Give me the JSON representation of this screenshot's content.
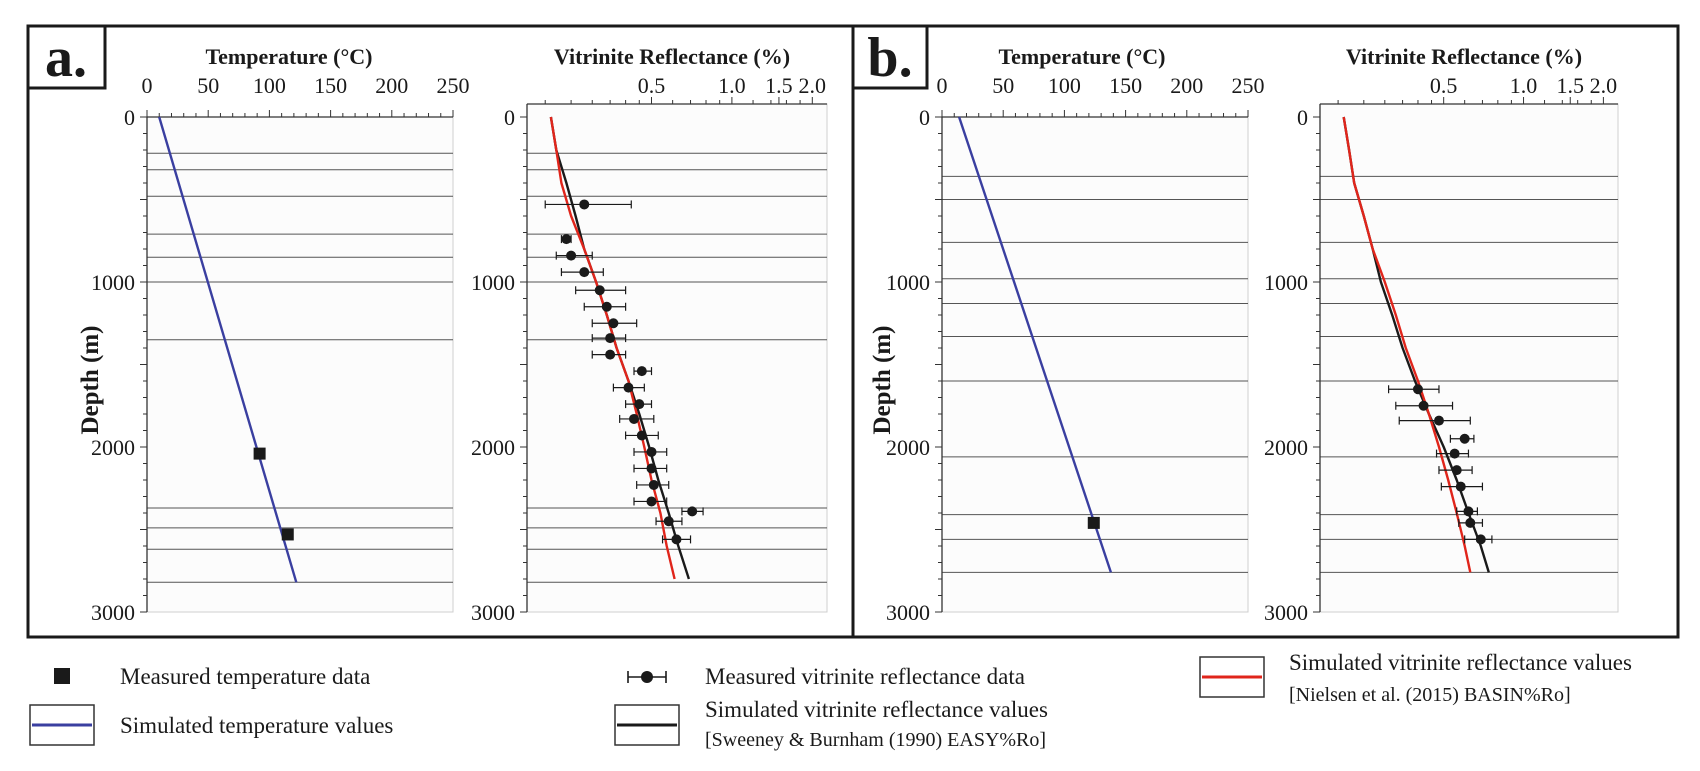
{
  "colors": {
    "temperature_line": "#3a3fa0",
    "easy_ro_line": "#1a1a1a",
    "basin_ro_line": "#e0251b",
    "marker": "#1a1a1a",
    "frame": "#1a1a1a",
    "gridline": "#555555"
  },
  "shared": {
    "ylabel": "Depth (m)",
    "y_ticks": [
      "0",
      "1000",
      "2000",
      "3000"
    ],
    "temp_title": "Temperature (°C)",
    "temp_ticks": [
      "0",
      "50",
      "100",
      "150",
      "200",
      "250"
    ],
    "vr_title": "Vitrinite Reflectance (%)",
    "vr_ticks": [
      "0.5",
      "1.0",
      "1.5",
      "2.0"
    ]
  },
  "legend": {
    "measured_temp": "Measured temperature data",
    "simulated_temp": "Simulated temperature values",
    "measured_vr": "Measured vitrinite reflectance data",
    "simulated_vr_easy": "Simulated vitrinite reflectance values",
    "simulated_vr_easy_ref": "[Sweeney & Burnham (1990) EASY%Ro]",
    "simulated_vr_basin": "Simulated vitrinite reflectance values",
    "simulated_vr_basin_ref": "[Nielsen et al. (2015) BASIN%Ro]"
  },
  "chart_data": [
    {
      "panel_label": "a.",
      "type": "line",
      "title": "Temperature (°C)",
      "xlabel": "Temperature (°C)",
      "ylabel": "Depth (m)",
      "xlim": [
        0,
        250
      ],
      "ylim": [
        3000,
        0
      ],
      "x_ticks": [
        0,
        50,
        100,
        150,
        200,
        250
      ],
      "y_ticks": [
        0,
        1000,
        2000,
        3000
      ],
      "grid": "horizontal formation boundaries",
      "horizon_depths": [
        220,
        320,
        480,
        710,
        850,
        1000,
        1350,
        2370,
        2490,
        2620,
        2820
      ],
      "series": [
        {
          "name": "Simulated temperature values",
          "kind": "line",
          "depth": [
            0,
            2820
          ],
          "values": [
            10,
            122
          ]
        },
        {
          "name": "Measured temperature data",
          "kind": "points",
          "depth": [
            2040,
            2530
          ],
          "values": [
            92,
            115
          ]
        }
      ]
    },
    {
      "panel_label": "a.",
      "type": "line",
      "title": "Vitrinite Reflectance (%)",
      "xlabel": "Vitrinite Reflectance (%)",
      "ylabel": "Depth (m)",
      "xscale": "log",
      "xlim": [
        0.2,
        2.0
      ],
      "ylim": [
        3000,
        0
      ],
      "x_ticks": [
        0.5,
        1.0,
        1.5,
        2.0
      ],
      "y_ticks": [
        0,
        1000,
        2000,
        3000
      ],
      "horizon_depths": [
        220,
        320,
        480,
        710,
        850,
        1000,
        1350,
        2370,
        2490,
        2620,
        2820
      ],
      "series": [
        {
          "name": "Simulated vitrinite reflectance values [Sweeney & Burnham (1990) EASY%Ro]",
          "kind": "line",
          "depth": [
            0,
            200,
            400,
            600,
            800,
            1000,
            1200,
            1400,
            1600,
            1800,
            2000,
            2200,
            2400,
            2600,
            2800
          ],
          "values": [
            0.21,
            0.22,
            0.24,
            0.26,
            0.28,
            0.31,
            0.34,
            0.37,
            0.41,
            0.45,
            0.49,
            0.53,
            0.58,
            0.63,
            0.69
          ]
        },
        {
          "name": "Simulated vitrinite reflectance values [Nielsen et al. (2015) BASIN%Ro]",
          "kind": "line",
          "depth": [
            0,
            200,
            400,
            600,
            800,
            1000,
            1200,
            1400,
            1600,
            1800,
            2000,
            2200,
            2400,
            2600,
            2800
          ],
          "values": [
            0.21,
            0.22,
            0.23,
            0.25,
            0.28,
            0.31,
            0.34,
            0.37,
            0.41,
            0.44,
            0.47,
            0.5,
            0.54,
            0.57,
            0.61
          ]
        },
        {
          "name": "Measured vitrinite reflectance data",
          "kind": "points_with_error",
          "depth": [
            530,
            740,
            840,
            940,
            1050,
            1150,
            1250,
            1340,
            1440,
            1540,
            1640,
            1740,
            1830,
            1930,
            2030,
            2130,
            2230,
            2330,
            2390,
            2450,
            2560
          ],
          "values": [
            0.28,
            0.24,
            0.25,
            0.28,
            0.32,
            0.34,
            0.36,
            0.35,
            0.35,
            0.46,
            0.41,
            0.45,
            0.43,
            0.46,
            0.5,
            0.5,
            0.51,
            0.5,
            0.71,
            0.58,
            0.62
          ],
          "err_low": [
            0.2,
            0.23,
            0.22,
            0.23,
            0.26,
            0.28,
            0.3,
            0.3,
            0.3,
            0.43,
            0.36,
            0.4,
            0.38,
            0.4,
            0.43,
            0.43,
            0.44,
            0.43,
            0.65,
            0.52,
            0.55
          ],
          "err_high": [
            0.42,
            0.25,
            0.3,
            0.33,
            0.4,
            0.4,
            0.44,
            0.4,
            0.4,
            0.5,
            0.47,
            0.5,
            0.51,
            0.53,
            0.57,
            0.57,
            0.58,
            0.57,
            0.78,
            0.65,
            0.7
          ]
        }
      ]
    },
    {
      "panel_label": "b.",
      "type": "line",
      "title": "Temperature (°C)",
      "xlabel": "Temperature (°C)",
      "ylabel": "Depth (m)",
      "xlim": [
        0,
        250
      ],
      "ylim": [
        3000,
        0
      ],
      "x_ticks": [
        0,
        50,
        100,
        150,
        200,
        250
      ],
      "y_ticks": [
        0,
        1000,
        2000,
        3000
      ],
      "horizon_depths": [
        360,
        500,
        760,
        980,
        1130,
        1330,
        1600,
        2060,
        2410,
        2560,
        2760
      ],
      "series": [
        {
          "name": "Simulated temperature values",
          "kind": "line",
          "depth": [
            0,
            2760
          ],
          "values": [
            14,
            138
          ]
        },
        {
          "name": "Measured temperature data",
          "kind": "points",
          "depth": [
            2460
          ],
          "values": [
            124
          ]
        }
      ]
    },
    {
      "panel_label": "b.",
      "type": "line",
      "title": "Vitrinite Reflectance (%)",
      "xlabel": "Vitrinite Reflectance (%)",
      "ylabel": "Depth (m)",
      "xscale": "log",
      "xlim": [
        0.2,
        2.0
      ],
      "ylim": [
        3000,
        0
      ],
      "x_ticks": [
        0.5,
        1.0,
        1.5,
        2.0
      ],
      "y_ticks": [
        0,
        1000,
        2000,
        3000
      ],
      "horizon_depths": [
        360,
        500,
        760,
        980,
        1130,
        1330,
        1600,
        2060,
        2410,
        2560,
        2760
      ],
      "series": [
        {
          "name": "Simulated vitrinite reflectance values [Sweeney & Burnham (1990) EASY%Ro]",
          "kind": "line",
          "depth": [
            0,
            200,
            400,
            600,
            800,
            1000,
            1200,
            1400,
            1600,
            1800,
            2000,
            2200,
            2400,
            2600,
            2760
          ],
          "values": [
            0.21,
            0.22,
            0.23,
            0.25,
            0.27,
            0.29,
            0.32,
            0.35,
            0.39,
            0.44,
            0.5,
            0.56,
            0.62,
            0.69,
            0.74
          ]
        },
        {
          "name": "Simulated vitrinite reflectance values [Nielsen et al. (2015) BASIN%Ro]",
          "kind": "line",
          "depth": [
            0,
            200,
            400,
            600,
            800,
            1000,
            1200,
            1400,
            1600,
            1800,
            2000,
            2200,
            2400,
            2600,
            2760
          ],
          "values": [
            0.21,
            0.22,
            0.23,
            0.25,
            0.27,
            0.3,
            0.33,
            0.36,
            0.4,
            0.44,
            0.48,
            0.52,
            0.56,
            0.6,
            0.63
          ]
        },
        {
          "name": "Measured vitrinite reflectance data",
          "kind": "points_with_error",
          "depth": [
            1650,
            1750,
            1840,
            1950,
            2040,
            2140,
            2240,
            2390,
            2460,
            2560
          ],
          "values": [
            0.4,
            0.42,
            0.48,
            0.6,
            0.55,
            0.56,
            0.58,
            0.62,
            0.63,
            0.69
          ],
          "err_low": [
            0.31,
            0.33,
            0.34,
            0.53,
            0.47,
            0.48,
            0.49,
            0.56,
            0.57,
            0.6
          ],
          "err_high": [
            0.48,
            0.54,
            0.63,
            0.65,
            0.62,
            0.64,
            0.7,
            0.67,
            0.7,
            0.76
          ]
        }
      ]
    }
  ]
}
